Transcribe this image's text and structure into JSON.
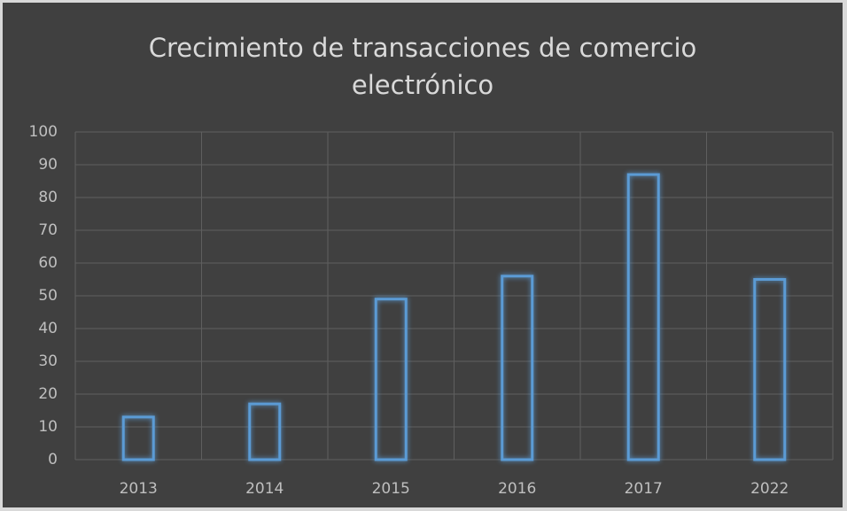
{
  "chart_data": {
    "type": "bar",
    "title": "Crecimiento de transacciones de comercio electrónico",
    "categories": [
      "2013",
      "2014",
      "2015",
      "2016",
      "2017",
      "2022"
    ],
    "values": [
      13,
      17,
      49,
      56,
      87,
      55
    ],
    "color": "#5b9bd5",
    "ylim": [
      0,
      100
    ],
    "yticks": [
      0,
      10,
      20,
      30,
      40,
      50,
      60,
      70,
      80,
      90,
      100
    ],
    "grid": true
  }
}
